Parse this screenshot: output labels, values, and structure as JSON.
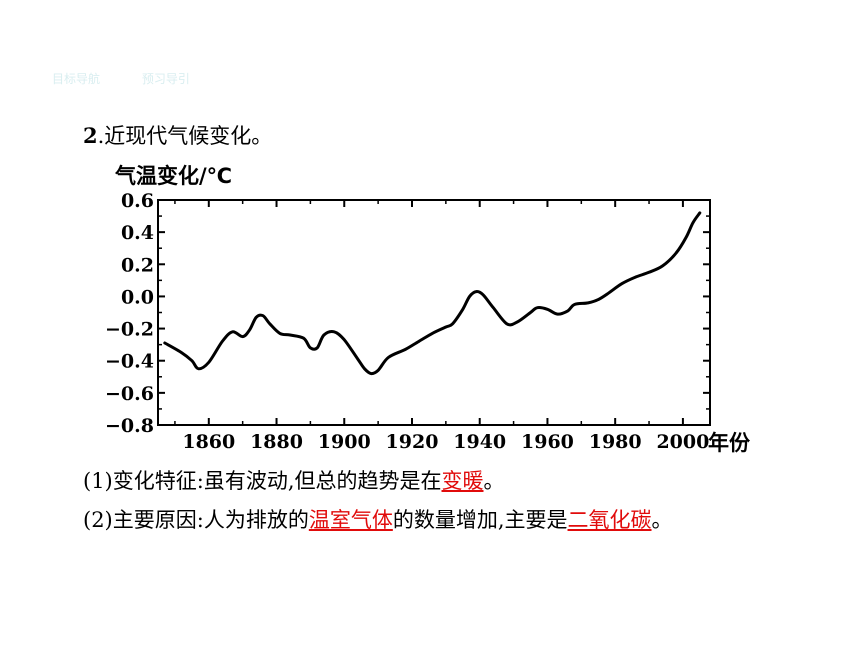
{
  "nav": {
    "tab1": "目标导航",
    "tab2": "预习导引"
  },
  "heading": {
    "num": "2",
    "text": ".近现代气候变化。"
  },
  "chart_data": {
    "type": "line",
    "ylabel": "气温变化/℃",
    "xlabel": "年份",
    "xlim": [
      1845,
      2008
    ],
    "ylim": [
      -0.8,
      0.6
    ],
    "yticks": [
      0.6,
      0.4,
      0.2,
      0.0,
      -0.2,
      -0.4,
      -0.6,
      -0.8
    ],
    "ytick_labels": [
      "0.6",
      "0.4",
      "0.2",
      "0.0",
      "−0.2",
      "−0.4",
      "−0.6",
      "−0.8"
    ],
    "xticks": [
      1860,
      1880,
      1900,
      1920,
      1940,
      1960,
      1980,
      2000
    ],
    "xtick_labels": [
      "1860",
      "1880",
      "1900",
      "1920",
      "1940",
      "1960",
      "1980",
      "2000"
    ],
    "grid": false,
    "series": [
      {
        "x": [
          1847,
          1852,
          1855,
          1857,
          1860,
          1864,
          1867,
          1870,
          1872,
          1874,
          1876,
          1878,
          1881,
          1884,
          1888,
          1890,
          1892,
          1894,
          1897,
          1900,
          1904,
          1906,
          1908,
          1910,
          1913,
          1918,
          1922,
          1926,
          1930,
          1932,
          1935,
          1937,
          1939,
          1941,
          1944,
          1948,
          1951,
          1955,
          1957,
          1960,
          1963,
          1966,
          1968,
          1972,
          1975,
          1978,
          1982,
          1986,
          1990,
          1994,
          1998,
          2001,
          2003,
          2005
        ],
        "y": [
          -0.29,
          -0.35,
          -0.4,
          -0.45,
          -0.41,
          -0.28,
          -0.22,
          -0.25,
          -0.21,
          -0.13,
          -0.12,
          -0.17,
          -0.23,
          -0.24,
          -0.26,
          -0.32,
          -0.32,
          -0.24,
          -0.22,
          -0.27,
          -0.39,
          -0.45,
          -0.48,
          -0.46,
          -0.38,
          -0.33,
          -0.28,
          -0.23,
          -0.19,
          -0.17,
          -0.08,
          0.0,
          0.03,
          0.01,
          -0.07,
          -0.17,
          -0.16,
          -0.1,
          -0.07,
          -0.08,
          -0.11,
          -0.09,
          -0.05,
          -0.04,
          -0.02,
          0.02,
          0.08,
          0.12,
          0.15,
          0.19,
          0.27,
          0.37,
          0.46,
          0.52
        ]
      }
    ]
  },
  "lines": {
    "l1_pre": "(1)变化特征:虽有波动,但总的趋势是在",
    "l1_ans": "变暖",
    "l1_post": "。",
    "l2_pre": "(2)主要原因:人为排放的",
    "l2_ans1": "温室气体",
    "l2_mid": "的数量增加,主要是",
    "l2_ans2": "二氧化碳",
    "l2_post": "。"
  }
}
